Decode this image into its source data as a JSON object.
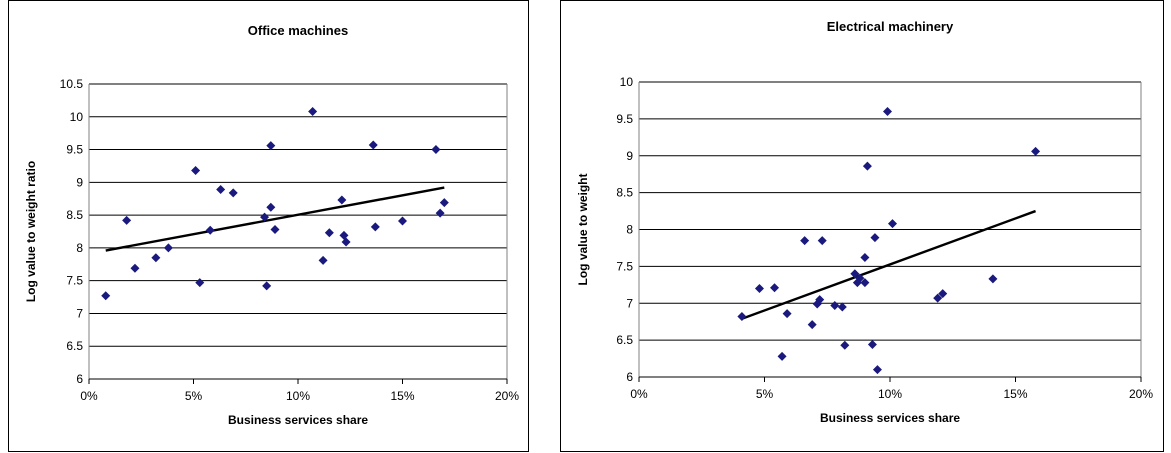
{
  "chart_data": [
    {
      "type": "scatter",
      "title": "Office machines",
      "xlabel": "Business services share",
      "ylabel": "Log value to weight ratio",
      "x_ticks": [
        "0%",
        "5%",
        "10%",
        "15%",
        "20%"
      ],
      "y_ticks": [
        "6",
        "6.5",
        "7",
        "7.5",
        "8",
        "8.5",
        "9",
        "9.5",
        "10",
        "10.5"
      ],
      "xlim": [
        0,
        0.2
      ],
      "ylim": [
        6,
        10.5
      ],
      "grid": "horizontal",
      "marker_color": "#1a1a7e",
      "trendline": {
        "x": [
          0.008,
          0.17
        ],
        "y": [
          7.96,
          8.92
        ]
      },
      "points": [
        {
          "x": 0.008,
          "y": 7.27
        },
        {
          "x": 0.018,
          "y": 8.42
        },
        {
          "x": 0.022,
          "y": 7.69
        },
        {
          "x": 0.032,
          "y": 7.85
        },
        {
          "x": 0.038,
          "y": 8.0
        },
        {
          "x": 0.051,
          "y": 9.18
        },
        {
          "x": 0.053,
          "y": 7.47
        },
        {
          "x": 0.058,
          "y": 8.27
        },
        {
          "x": 0.063,
          "y": 8.89
        },
        {
          "x": 0.069,
          "y": 8.84
        },
        {
          "x": 0.084,
          "y": 8.47
        },
        {
          "x": 0.085,
          "y": 7.42
        },
        {
          "x": 0.087,
          "y": 8.62
        },
        {
          "x": 0.087,
          "y": 9.56
        },
        {
          "x": 0.089,
          "y": 8.28
        },
        {
          "x": 0.107,
          "y": 10.08
        },
        {
          "x": 0.112,
          "y": 7.81
        },
        {
          "x": 0.115,
          "y": 8.23
        },
        {
          "x": 0.121,
          "y": 8.73
        },
        {
          "x": 0.122,
          "y": 8.19
        },
        {
          "x": 0.123,
          "y": 8.09
        },
        {
          "x": 0.136,
          "y": 9.57
        },
        {
          "x": 0.137,
          "y": 8.32
        },
        {
          "x": 0.15,
          "y": 8.41
        },
        {
          "x": 0.166,
          "y": 9.5
        },
        {
          "x": 0.168,
          "y": 8.53
        },
        {
          "x": 0.17,
          "y": 8.69
        }
      ]
    },
    {
      "type": "scatter",
      "title": "Electrical machinery",
      "xlabel": "Business services share",
      "ylabel": "Log value to weight",
      "x_ticks": [
        "0%",
        "5%",
        "10%",
        "15%",
        "20%"
      ],
      "y_ticks": [
        "6",
        "6.5",
        "7",
        "7.5",
        "8",
        "8.5",
        "9",
        "9.5",
        "10"
      ],
      "xlim": [
        0,
        0.2
      ],
      "ylim": [
        6,
        10
      ],
      "grid": "horizontal",
      "marker_color": "#1a1a7e",
      "trendline": {
        "x": [
          0.041,
          0.158
        ],
        "y": [
          6.79,
          8.25
        ]
      },
      "points": [
        {
          "x": 0.041,
          "y": 6.82
        },
        {
          "x": 0.048,
          "y": 7.2
        },
        {
          "x": 0.054,
          "y": 7.21
        },
        {
          "x": 0.057,
          "y": 6.28
        },
        {
          "x": 0.059,
          "y": 6.86
        },
        {
          "x": 0.066,
          "y": 7.85
        },
        {
          "x": 0.069,
          "y": 6.71
        },
        {
          "x": 0.071,
          "y": 6.99
        },
        {
          "x": 0.072,
          "y": 7.05
        },
        {
          "x": 0.073,
          "y": 7.85
        },
        {
          "x": 0.078,
          "y": 6.97
        },
        {
          "x": 0.081,
          "y": 6.95
        },
        {
          "x": 0.082,
          "y": 6.43
        },
        {
          "x": 0.086,
          "y": 7.4
        },
        {
          "x": 0.087,
          "y": 7.28
        },
        {
          "x": 0.088,
          "y": 7.34
        },
        {
          "x": 0.09,
          "y": 7.28
        },
        {
          "x": 0.09,
          "y": 7.62
        },
        {
          "x": 0.091,
          "y": 8.86
        },
        {
          "x": 0.093,
          "y": 6.44
        },
        {
          "x": 0.094,
          "y": 7.89
        },
        {
          "x": 0.095,
          "y": 6.1
        },
        {
          "x": 0.099,
          "y": 9.6
        },
        {
          "x": 0.101,
          "y": 8.08
        },
        {
          "x": 0.119,
          "y": 7.07
        },
        {
          "x": 0.121,
          "y": 7.13
        },
        {
          "x": 0.141,
          "y": 7.33
        },
        {
          "x": 0.158,
          "y": 9.06
        }
      ]
    }
  ]
}
